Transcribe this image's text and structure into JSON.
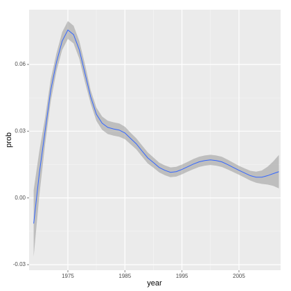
{
  "chart_data": {
    "type": "line",
    "x_label": "year",
    "y_label": "prob",
    "x": [
      1969,
      1970,
      1971,
      1972,
      1973,
      1974,
      1975,
      1976,
      1977,
      1978,
      1979,
      1980,
      1981,
      1982,
      1983,
      1984,
      1985,
      1986,
      1987,
      1988,
      1989,
      1990,
      1991,
      1992,
      1993,
      1994,
      1995,
      1996,
      1997,
      1998,
      1999,
      2000,
      2001,
      2002,
      2003,
      2004,
      2005,
      2006,
      2007,
      2008,
      2009,
      2010,
      2011,
      2012
    ],
    "values": [
      -0.0115,
      0.0112,
      0.03,
      0.0485,
      0.061,
      0.0705,
      0.0755,
      0.0734,
      0.0666,
      0.056,
      0.0454,
      0.0376,
      0.0336,
      0.0317,
      0.031,
      0.0305,
      0.0292,
      0.0267,
      0.0243,
      0.0211,
      0.018,
      0.0159,
      0.0137,
      0.0124,
      0.0115,
      0.0118,
      0.0128,
      0.014,
      0.0152,
      0.0162,
      0.0168,
      0.0171,
      0.0168,
      0.0162,
      0.015,
      0.0137,
      0.0124,
      0.0112,
      0.01,
      0.0093,
      0.0093,
      0.01,
      0.0109,
      0.0118
    ],
    "lower": [
      -0.0265,
      0.0012,
      0.024,
      0.0435,
      0.057,
      0.0665,
      0.0715,
      0.0694,
      0.0626,
      0.052,
      0.0424,
      0.0346,
      0.0306,
      0.0287,
      0.028,
      0.0275,
      0.0264,
      0.0241,
      0.0218,
      0.0186,
      0.0155,
      0.0136,
      0.0115,
      0.0102,
      0.0093,
      0.0096,
      0.0106,
      0.0118,
      0.0129,
      0.0139,
      0.0145,
      0.0148,
      0.0145,
      0.0139,
      0.0128,
      0.0116,
      0.0104,
      0.0091,
      0.0078,
      0.0068,
      0.0063,
      0.006,
      0.0054,
      0.0043
    ],
    "upper": [
      0.0035,
      0.0212,
      0.036,
      0.0535,
      0.065,
      0.0745,
      0.0795,
      0.0774,
      0.0706,
      0.06,
      0.0484,
      0.0406,
      0.0366,
      0.0347,
      0.034,
      0.0335,
      0.032,
      0.0293,
      0.0268,
      0.0236,
      0.0205,
      0.0182,
      0.0159,
      0.0146,
      0.0137,
      0.014,
      0.015,
      0.0162,
      0.0175,
      0.0185,
      0.0191,
      0.0194,
      0.0191,
      0.0185,
      0.0172,
      0.0158,
      0.0144,
      0.0133,
      0.0122,
      0.0118,
      0.0123,
      0.014,
      0.0164,
      0.0193
    ],
    "color": "#3366ff",
    "band_color": "#999999",
    "xlim": [
      1968.2,
      2012.3
    ],
    "xticks": [
      1975,
      1985,
      1995,
      2005
    ],
    "ylim": [
      -0.0325,
      0.0846
    ],
    "yticks": [
      -0.03,
      {
        "value": 0,
        "label": "0.00"
      },
      0.03,
      0.06
    ],
    "grid": true
  }
}
